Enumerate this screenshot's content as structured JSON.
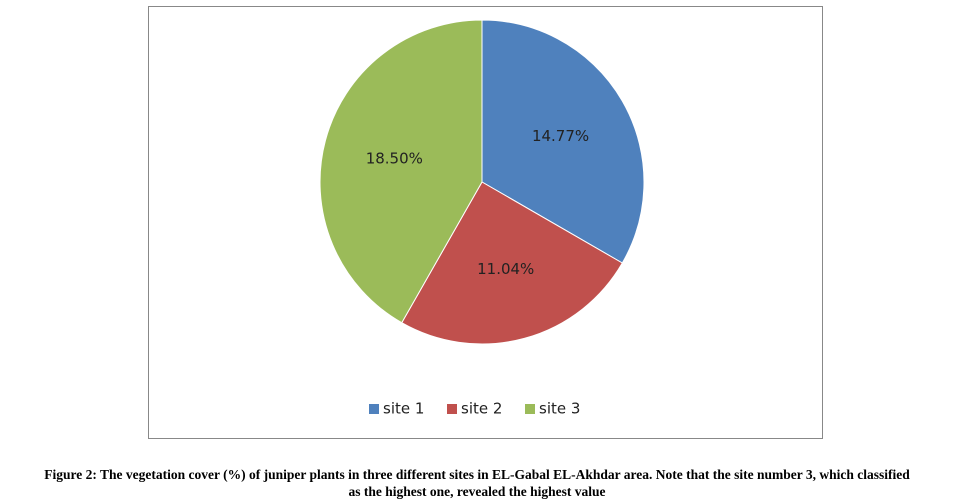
{
  "chart_data": {
    "type": "pie",
    "caption": "Figure 2: The vegetation cover (%) of juniper plants in three different sites in EL-Gabal EL-Akhdar area. Note that the site number 3, which classified as the highest one, revealed the highest value",
    "categories": [
      "site 1",
      "site 2",
      "site 3"
    ],
    "values": [
      14.77,
      11.04,
      18.5
    ],
    "value_labels": [
      "14.77%",
      "11.04%",
      "18.50%"
    ],
    "colors": [
      "#4f81bd",
      "#c0504d",
      "#9bbb59"
    ],
    "legend": "bottom"
  }
}
